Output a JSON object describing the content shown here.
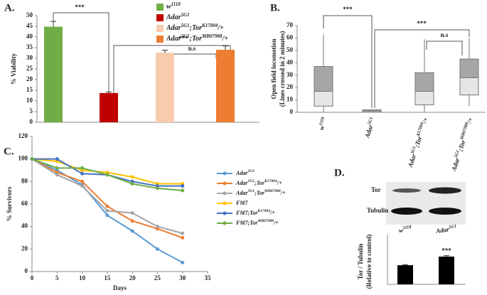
{
  "chart_data": [
    {
      "type": "bar",
      "panel": "A.",
      "ylabel": "% Viability",
      "ylim": [
        0,
        50
      ],
      "yticks": [
        0,
        5,
        10,
        15,
        20,
        25,
        30,
        35,
        40,
        45,
        50
      ],
      "series": [
        {
          "name": [
            "w",
            "1118"
          ],
          "color": "#70ad47",
          "values": [
            44.8
          ],
          "errors": [
            2.5
          ]
        },
        {
          "name": [
            "Adar",
            "5G1"
          ],
          "color": "#c00000",
          "values": [
            13.7
          ],
          "errors": [
            0.5
          ]
        },
        {
          "name": [
            "Adar",
            "5G1",
            ";Tor",
            "K17004",
            "/+"
          ],
          "color": "#f8cbad",
          "values": [
            32.6
          ],
          "errors": [
            1.2
          ]
        },
        {
          "name": [
            "Adar",
            "5G1",
            ";Tor",
            "MB07988",
            "/+"
          ],
          "color": "#ed7d31",
          "values": [
            34
          ],
          "errors": [
            1.8
          ]
        }
      ],
      "annotations": [
        "***",
        "***",
        "n.s"
      ]
    },
    {
      "type": "box",
      "panel": "B.",
      "ylabel": [
        "Open field locomotion",
        "(Lines crossed in 2 minutes)"
      ],
      "ylim": [
        0,
        70
      ],
      "yticks": [
        0,
        10,
        20,
        30,
        40,
        50,
        60,
        70
      ],
      "categories": [
        [
          "w",
          "1118"
        ],
        [
          "Adar",
          "5G1"
        ],
        [
          "Adar",
          "5G1",
          ";Tor",
          "K17004",
          "/+"
        ],
        [
          "Adar",
          "5G1",
          ";Tor",
          "MB07988",
          "/+"
        ]
      ],
      "boxes": [
        {
          "min": 0,
          "q1": 5,
          "median": 17,
          "q3": 37,
          "max": 63
        },
        {
          "min": 0,
          "q1": 0,
          "median": 1,
          "q3": 2,
          "max": 2
        },
        {
          "min": 0,
          "q1": 6,
          "median": 17,
          "q3": 32,
          "max": 59
        },
        {
          "min": 5,
          "q1": 14,
          "median": 28,
          "q3": 43,
          "max": 60
        }
      ],
      "upper_color": "#a6a6a6",
      "lower_color": "#e7e6e6",
      "annotations": [
        "***",
        "***",
        "n.s"
      ]
    },
    {
      "type": "line",
      "panel": "C.",
      "xlabel": "Days",
      "ylabel": "% Survivors",
      "x": [
        0,
        5,
        10,
        15,
        20,
        25,
        30
      ],
      "xlim": [
        0,
        35
      ],
      "xticks": [
        0,
        5,
        10,
        15,
        20,
        25,
        30,
        35
      ],
      "ylim": [
        0,
        120
      ],
      "yticks": [
        0,
        20,
        40,
        60,
        80,
        100,
        120
      ],
      "series": [
        {
          "name": [
            "Adar",
            "5G1"
          ],
          "color": "#5b9bd5",
          "values": [
            100,
            90,
            77,
            50,
            36,
            20,
            8
          ]
        },
        {
          "name": [
            "Adar",
            "5G1",
            ";Tor",
            "K17004",
            "/+"
          ],
          "color": "#ed7d31",
          "values": [
            100,
            88,
            80,
            58,
            45,
            38,
            30
          ]
        },
        {
          "name": [
            "Adar",
            "5G1",
            ";Tor",
            "MB07988",
            "/+"
          ],
          "color": "#a5a5a5",
          "values": [
            100,
            86,
            76,
            54,
            52,
            40,
            34
          ]
        },
        {
          "name": [
            "FM7"
          ],
          "color": "#ffc000",
          "values": [
            100,
            98,
            90,
            88,
            84,
            78,
            78
          ]
        },
        {
          "name": [
            "FM7;Tor",
            "K17004",
            "/+"
          ],
          "color": "#4472c4",
          "values": [
            100,
            100,
            87,
            86,
            80,
            76,
            76
          ]
        },
        {
          "name": [
            "FM7;Tor",
            "MB07988",
            "/+"
          ],
          "color": "#70ad47",
          "values": [
            100,
            92,
            92,
            86,
            78,
            74,
            72
          ]
        }
      ]
    },
    {
      "type": "bar",
      "panel": "D.",
      "blot_labels": [
        "Tor",
        "Tubulin"
      ],
      "categories": [
        [
          "w",
          "1118"
        ],
        [
          "Adar",
          "5G1"
        ]
      ],
      "ylabel": [
        "Tor / Tubulin",
        "(Relative to control)"
      ],
      "values": [
        1.0,
        1.45
      ],
      "errors": [
        0.03,
        0.05
      ],
      "color": "#000000",
      "ylim": [
        0,
        2.6
      ],
      "annotations": [
        "***"
      ]
    }
  ]
}
